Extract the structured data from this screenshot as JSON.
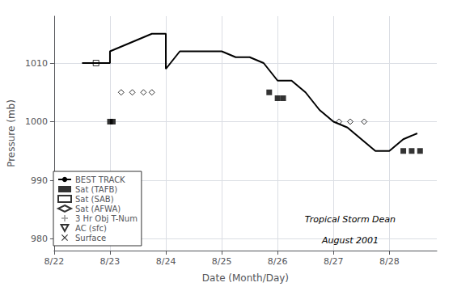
{
  "chart_data": {
    "type": "line",
    "xlabel": "Date (Month/Day)",
    "ylabel": "Pressure (mb)",
    "xlim": [
      22.0,
      28.85
    ],
    "ylim": [
      978,
      1018
    ],
    "xticks": [
      {
        "value": 22,
        "label": "8/22"
      },
      {
        "value": 23,
        "label": "8/23"
      },
      {
        "value": 24,
        "label": "8/24"
      },
      {
        "value": 25,
        "label": "8/25"
      },
      {
        "value": 26,
        "label": "8/26"
      },
      {
        "value": 27,
        "label": "8/27"
      },
      {
        "value": 28,
        "label": "8/28"
      }
    ],
    "yticks": [
      980,
      990,
      1000,
      1010
    ],
    "grid": true,
    "legend": "lower left",
    "series": [
      {
        "name": "BEST TRACK",
        "type": "line",
        "color": "#000000",
        "line_style": "solid",
        "x": [
          22.5,
          22.75,
          23.0,
          23.0,
          23.5,
          23.75,
          24.0,
          24.0,
          24.25,
          24.5,
          24.75,
          25.0,
          25.25,
          25.5,
          25.75,
          26.0,
          26.0,
          26.25,
          26.5,
          26.75,
          27.0,
          27.0,
          27.25,
          27.5,
          27.75,
          28.0,
          28.25,
          28.5
        ],
        "values": [
          1010,
          1010,
          1010,
          1012,
          1014,
          1015,
          1015,
          1009,
          1012,
          1012,
          1012,
          1012,
          1011,
          1011,
          1010,
          1007,
          1007,
          1007,
          1005,
          1002,
          1000,
          1000,
          999,
          997,
          995,
          995,
          997,
          998
        ]
      },
      {
        "name": "Sat (TAFB)",
        "type": "scatter",
        "color": "#000000",
        "marker": "square",
        "x": [
          23.0,
          23.05,
          25.85,
          26.0,
          26.1,
          28.25,
          28.4,
          28.55
        ],
        "values": [
          1000,
          1000,
          1005,
          1004,
          1004,
          995,
          995,
          995
        ]
      },
      {
        "name": "Sat (SAB)",
        "type": "scatter",
        "color": "#000000",
        "marker": "open_square",
        "x": [
          22.75
        ],
        "values": [
          1010
        ]
      },
      {
        "name": "Sat (AFWA)",
        "type": "scatter",
        "color": "#000000",
        "marker": "open_diamond",
        "x": [
          23.2,
          23.4,
          23.6,
          23.75,
          27.1,
          27.3,
          27.55
        ],
        "values": [
          1005,
          1005,
          1005,
          1005,
          1000,
          1000,
          1000
        ]
      },
      {
        "name": "3 Hr Obj T-Num",
        "type": "scatter",
        "color": "#808080",
        "marker": "plus",
        "x": [],
        "values": []
      },
      {
        "name": "AC (sfc)",
        "type": "scatter",
        "color": "#000000",
        "marker": "open_triangle_down",
        "x": [],
        "values": []
      },
      {
        "name": "Surface",
        "type": "scatter",
        "color": "#000000",
        "marker": "x",
        "x": [],
        "values": []
      }
    ],
    "annotations": [
      {
        "text": "Tropical Storm Dean",
        "x": 27.3,
        "y": 982.5,
        "anchor": "bottom"
      },
      {
        "text": "August 2001",
        "x": 27.3,
        "y": 980.5,
        "anchor": "top"
      }
    ]
  }
}
